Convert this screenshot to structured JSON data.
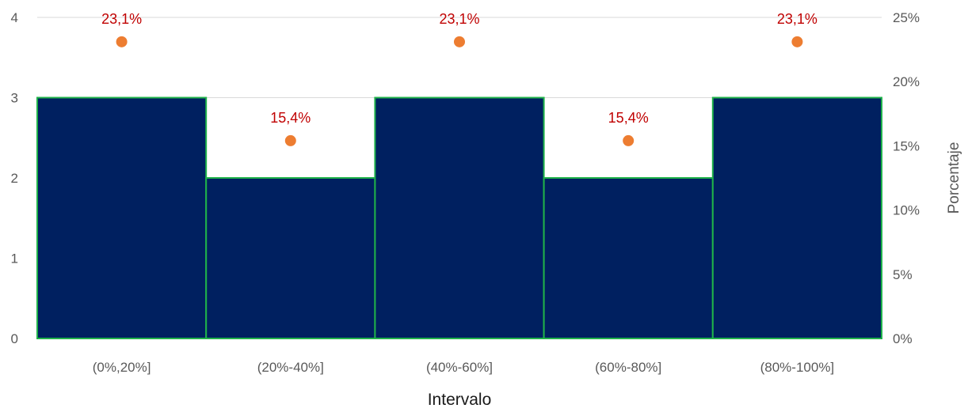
{
  "chart_data": {
    "type": "bar",
    "categories": [
      "(0%,20%]",
      "(20%-40%]",
      "(40%-60%]",
      "(60%-80%]",
      "(80%-100%]"
    ],
    "series": [
      {
        "values": [
          3,
          2,
          3,
          2,
          3
        ],
        "color": "#002060",
        "edge_color": "#1fb24a",
        "axis": "left"
      },
      {
        "type": "scatter",
        "values": [
          23.1,
          15.4,
          23.1,
          15.4,
          23.1
        ],
        "data_labels": [
          "23,1%",
          "15,4%",
          "23,1%",
          "15,4%",
          "23,1%"
        ],
        "color": "#ed7d31",
        "label_color": "#c00000",
        "axis": "right"
      }
    ],
    "xlabel": "Intervalo",
    "ylabel": "",
    "ylabel_right": "Porcentaje",
    "ylim": [
      0,
      4
    ],
    "yticks": [
      "0",
      "1",
      "2",
      "3",
      "4"
    ],
    "ylim_right": [
      0,
      25
    ],
    "yticks_right": [
      "0%",
      "5%",
      "10%",
      "15%",
      "20%",
      "25%"
    ],
    "grid": true,
    "legend": "none"
  }
}
